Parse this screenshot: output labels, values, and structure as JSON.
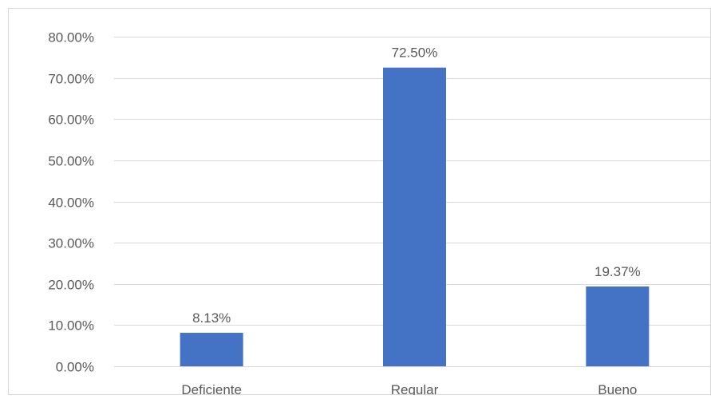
{
  "chart_data": {
    "type": "bar",
    "categories": [
      "Deficiente",
      "Regular",
      "Bueno"
    ],
    "values": [
      8.13,
      72.5,
      19.37
    ],
    "data_labels": [
      "8.13%",
      "72.50%",
      "19.37%"
    ],
    "y_ticks": [
      "0.00%",
      "10.00%",
      "20.00%",
      "30.00%",
      "40.00%",
      "50.00%",
      "60.00%",
      "70.00%",
      "80.00%"
    ],
    "ylim": [
      0,
      80
    ],
    "grid": true,
    "bar_color": "#4472C4",
    "gridline_color": "#D9D9D9",
    "text_color": "#595959",
    "title": "",
    "xlabel": "",
    "ylabel": ""
  }
}
